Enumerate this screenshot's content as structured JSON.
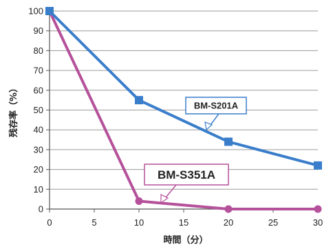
{
  "chart_data": {
    "type": "line",
    "xlabel": "時間（分）",
    "ylabel": "残存率（%）",
    "xlim": [
      0,
      30
    ],
    "ylim": [
      0,
      100
    ],
    "xticks": [
      0,
      5,
      10,
      15,
      20,
      25,
      30
    ],
    "yticks": [
      0,
      10,
      20,
      30,
      40,
      50,
      60,
      70,
      80,
      90,
      100
    ],
    "grid": "horizontal",
    "series": [
      {
        "name": "BM-S201A",
        "color": "#3a7ecb",
        "marker": "square",
        "x": [
          0,
          10,
          20,
          30
        ],
        "y": [
          100,
          55,
          34,
          22
        ]
      },
      {
        "name": "BM-S351A",
        "color": "#b5519a",
        "marker": "circle",
        "x": [
          0,
          10,
          20,
          30
        ],
        "y": [
          100,
          4,
          0,
          0
        ]
      }
    ],
    "annotations": [
      {
        "text": "BM-S201A",
        "series": 0,
        "border_color": "#3a7ecb",
        "bold": false
      },
      {
        "text": "BM-S351A",
        "series": 1,
        "border_color": "#b5519a",
        "bold": true
      }
    ]
  }
}
